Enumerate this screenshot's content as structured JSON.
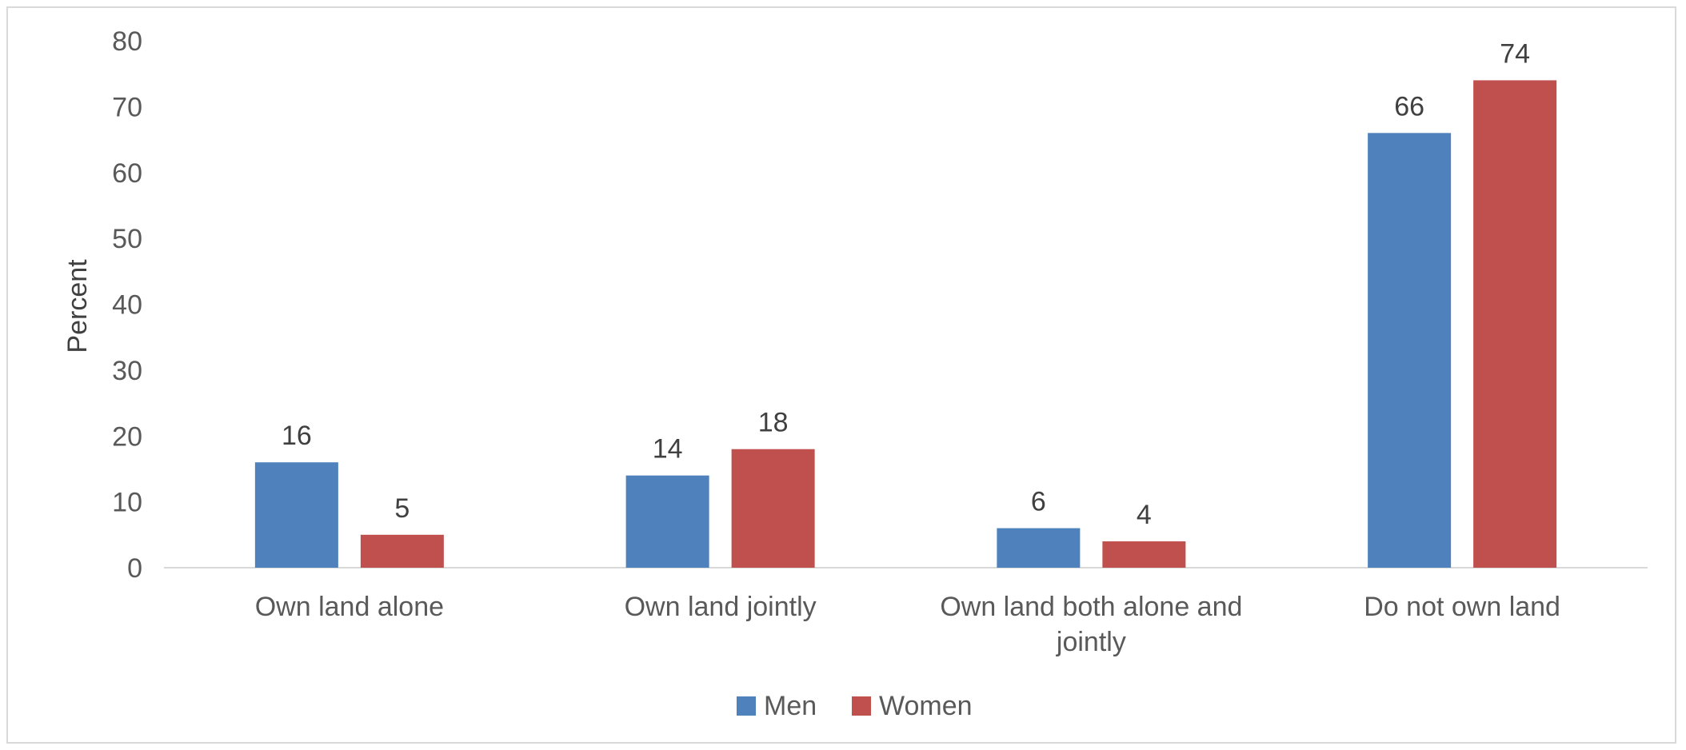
{
  "chart_data": {
    "type": "bar",
    "ylabel": "Percent",
    "ylim": [
      0,
      80
    ],
    "yticks": [
      0,
      10,
      20,
      30,
      40,
      50,
      60,
      70,
      80
    ],
    "categories": [
      "Own land alone",
      "Own land jointly",
      "Own land both alone and jointly",
      "Do not own land"
    ],
    "series": [
      {
        "name": "Men",
        "color": "#4f81bd",
        "values": [
          16,
          14,
          6,
          66
        ]
      },
      {
        "name": "Women",
        "color": "#c0504d",
        "values": [
          5,
          18,
          4,
          74
        ]
      }
    ],
    "legend_position": "bottom",
    "grid": false
  }
}
